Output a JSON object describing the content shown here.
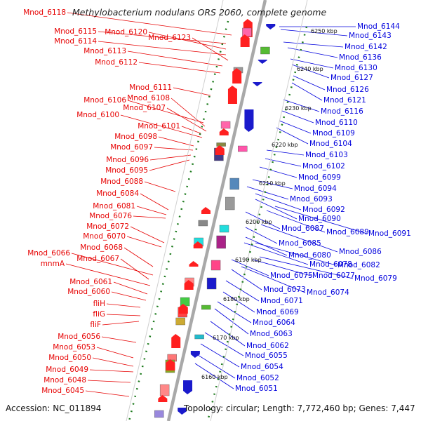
{
  "title": "Methylobacterium nodulans ORS 2060, complete genome",
  "accession": "Accession: NC_011894",
  "topology": "Topology: circular; Length: 7,772,460 bp; Genes: 7,447",
  "colors": {
    "left_labels": "#e60000",
    "right_labels": "#0000dd",
    "axis": "#a9a9a9",
    "dots": "#1c7a1c"
  },
  "ticks": [
    "6250 kbp",
    "6240 kbp",
    "6230 kbp",
    "6220 kbp",
    "6210 kbp",
    "6200 kbp",
    "6190 kbp",
    "6180 kbp",
    "6170 kbp",
    "6160 kbp"
  ],
  "left_genes": [
    "Mnod_6118",
    "Mnod_6115",
    "Mnod_6120",
    "Mnod_6114",
    "Mnod_6123",
    "Mnod_6113",
    "Mnod_6112",
    "Mnod_6111",
    "Mnod_6106",
    "Mnod_6108",
    "Mnod_6107",
    "Mnod_6100",
    "Mnod_6101",
    "Mnod_6098",
    "Mnod_6097",
    "Mnod_6096",
    "Mnod_6095",
    "Mnod_6088",
    "Mnod_6084",
    "Mnod_6081",
    "Mnod_6076",
    "Mnod_6072",
    "Mnod_6070",
    "Mnod_6068",
    "Mnod_6066",
    "Mnod_6067",
    "mnmA",
    "Mnod_6061",
    "Mnod_6060",
    "fliH",
    "fliG",
    "fliF",
    "Mnod_6056",
    "Mnod_6053",
    "Mnod_6050",
    "Mnod_6049",
    "Mnod_6048",
    "Mnod_6045"
  ],
  "right_genes": [
    "Mnod_6144",
    "Mnod_6143",
    "Mnod_6142",
    "Mnod_6136",
    "Mnod_6130",
    "Mnod_6127",
    "Mnod_6126",
    "Mnod_6121",
    "Mnod_6116",
    "Mnod_6110",
    "Mnod_6109",
    "Mnod_6104",
    "Mnod_6103",
    "Mnod_6102",
    "Mnod_6099",
    "Mnod_6094",
    "Mnod_6093",
    "Mnod_6092",
    "Mnod_6090",
    "Mnod_6087",
    "Mnod_6089",
    "Mnod_6091",
    "Mnod_6085",
    "Mnod_6086",
    "Mnod_6080",
    "Mnod_6078",
    "Mnod_6082",
    "Mnod_6075",
    "Mnod_6077",
    "Mnod_6079",
    "Mnod_6073",
    "Mnod_6074",
    "Mnod_6071",
    "Mnod_6069",
    "Mnod_6064",
    "Mnod_6063",
    "Mnod_6062",
    "Mnod_6055",
    "Mnod_6054",
    "Mnod_6052",
    "Mnod_6051"
  ]
}
